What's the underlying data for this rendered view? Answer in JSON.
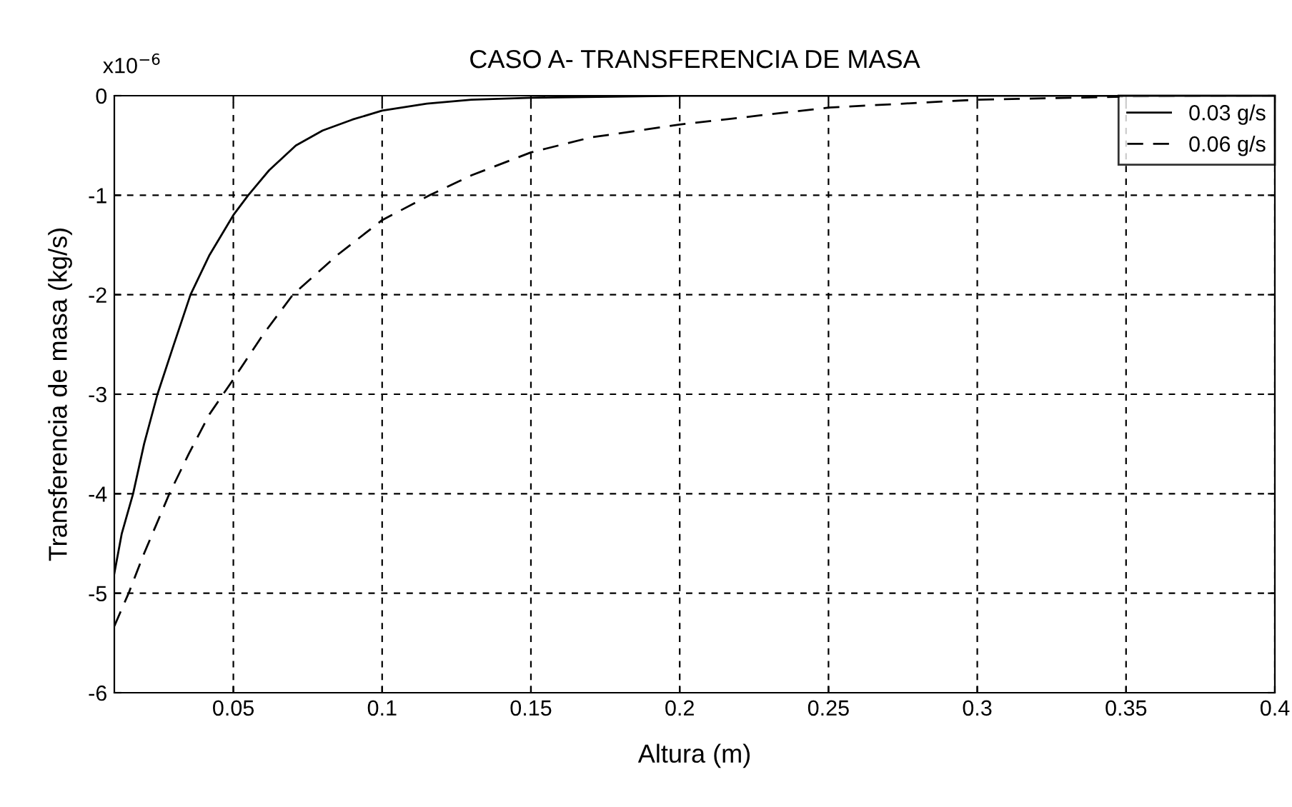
{
  "chart_data": {
    "type": "line",
    "title": "CASO A- TRANSFERENCIA DE MASA",
    "xlabel": "Altura (m)",
    "ylabel": "Transferencia de masa (kg/s)",
    "annotations": [
      "x10$^{−6}$"
    ],
    "xlim": [
      0.01,
      0.4
    ],
    "ylim": [
      -6,
      0
    ],
    "xticks": [
      0.05,
      0.1,
      0.15,
      0.2,
      0.25,
      0.3,
      0.35,
      0.4
    ],
    "yticks": [
      -6,
      -5,
      -4,
      -3,
      -2,
      -1,
      0
    ],
    "grid": true,
    "legend": "top right",
    "series": [
      {
        "name": "0.03 g/s",
        "color": "#000000",
        "line_style": "solid",
        "x": [
          0.01,
          0.0125,
          0.0163,
          0.02,
          0.0245,
          0.03,
          0.0356,
          0.042,
          0.05,
          0.055,
          0.062,
          0.071,
          0.08,
          0.09,
          0.1,
          0.115,
          0.13,
          0.15,
          0.2,
          0.3,
          0.4
        ],
        "values": [
          -4.8,
          -4.4,
          -4.0,
          -3.5,
          -3.0,
          -2.5,
          -2.0,
          -1.6,
          -1.2,
          -1.0,
          -0.75,
          -0.5,
          -0.35,
          -0.24,
          -0.15,
          -0.08,
          -0.04,
          -0.02,
          0,
          0,
          0
        ]
      },
      {
        "name": "0.06 g/s",
        "color": "#000000",
        "line_style": "dashed",
        "x": [
          0.01,
          0.0148,
          0.02,
          0.0285,
          0.035,
          0.042,
          0.05,
          0.06,
          0.07,
          0.085,
          0.1,
          0.116,
          0.13,
          0.15,
          0.17,
          0.2,
          0.25,
          0.3,
          0.35,
          0.4
        ],
        "values": [
          -5.33,
          -5.0,
          -4.6,
          -4.0,
          -3.6,
          -3.2,
          -2.85,
          -2.4,
          -2.0,
          -1.6,
          -1.25,
          -1.0,
          -0.8,
          -0.57,
          -0.42,
          -0.29,
          -0.12,
          -0.04,
          -0.01,
          0
        ]
      }
    ]
  }
}
